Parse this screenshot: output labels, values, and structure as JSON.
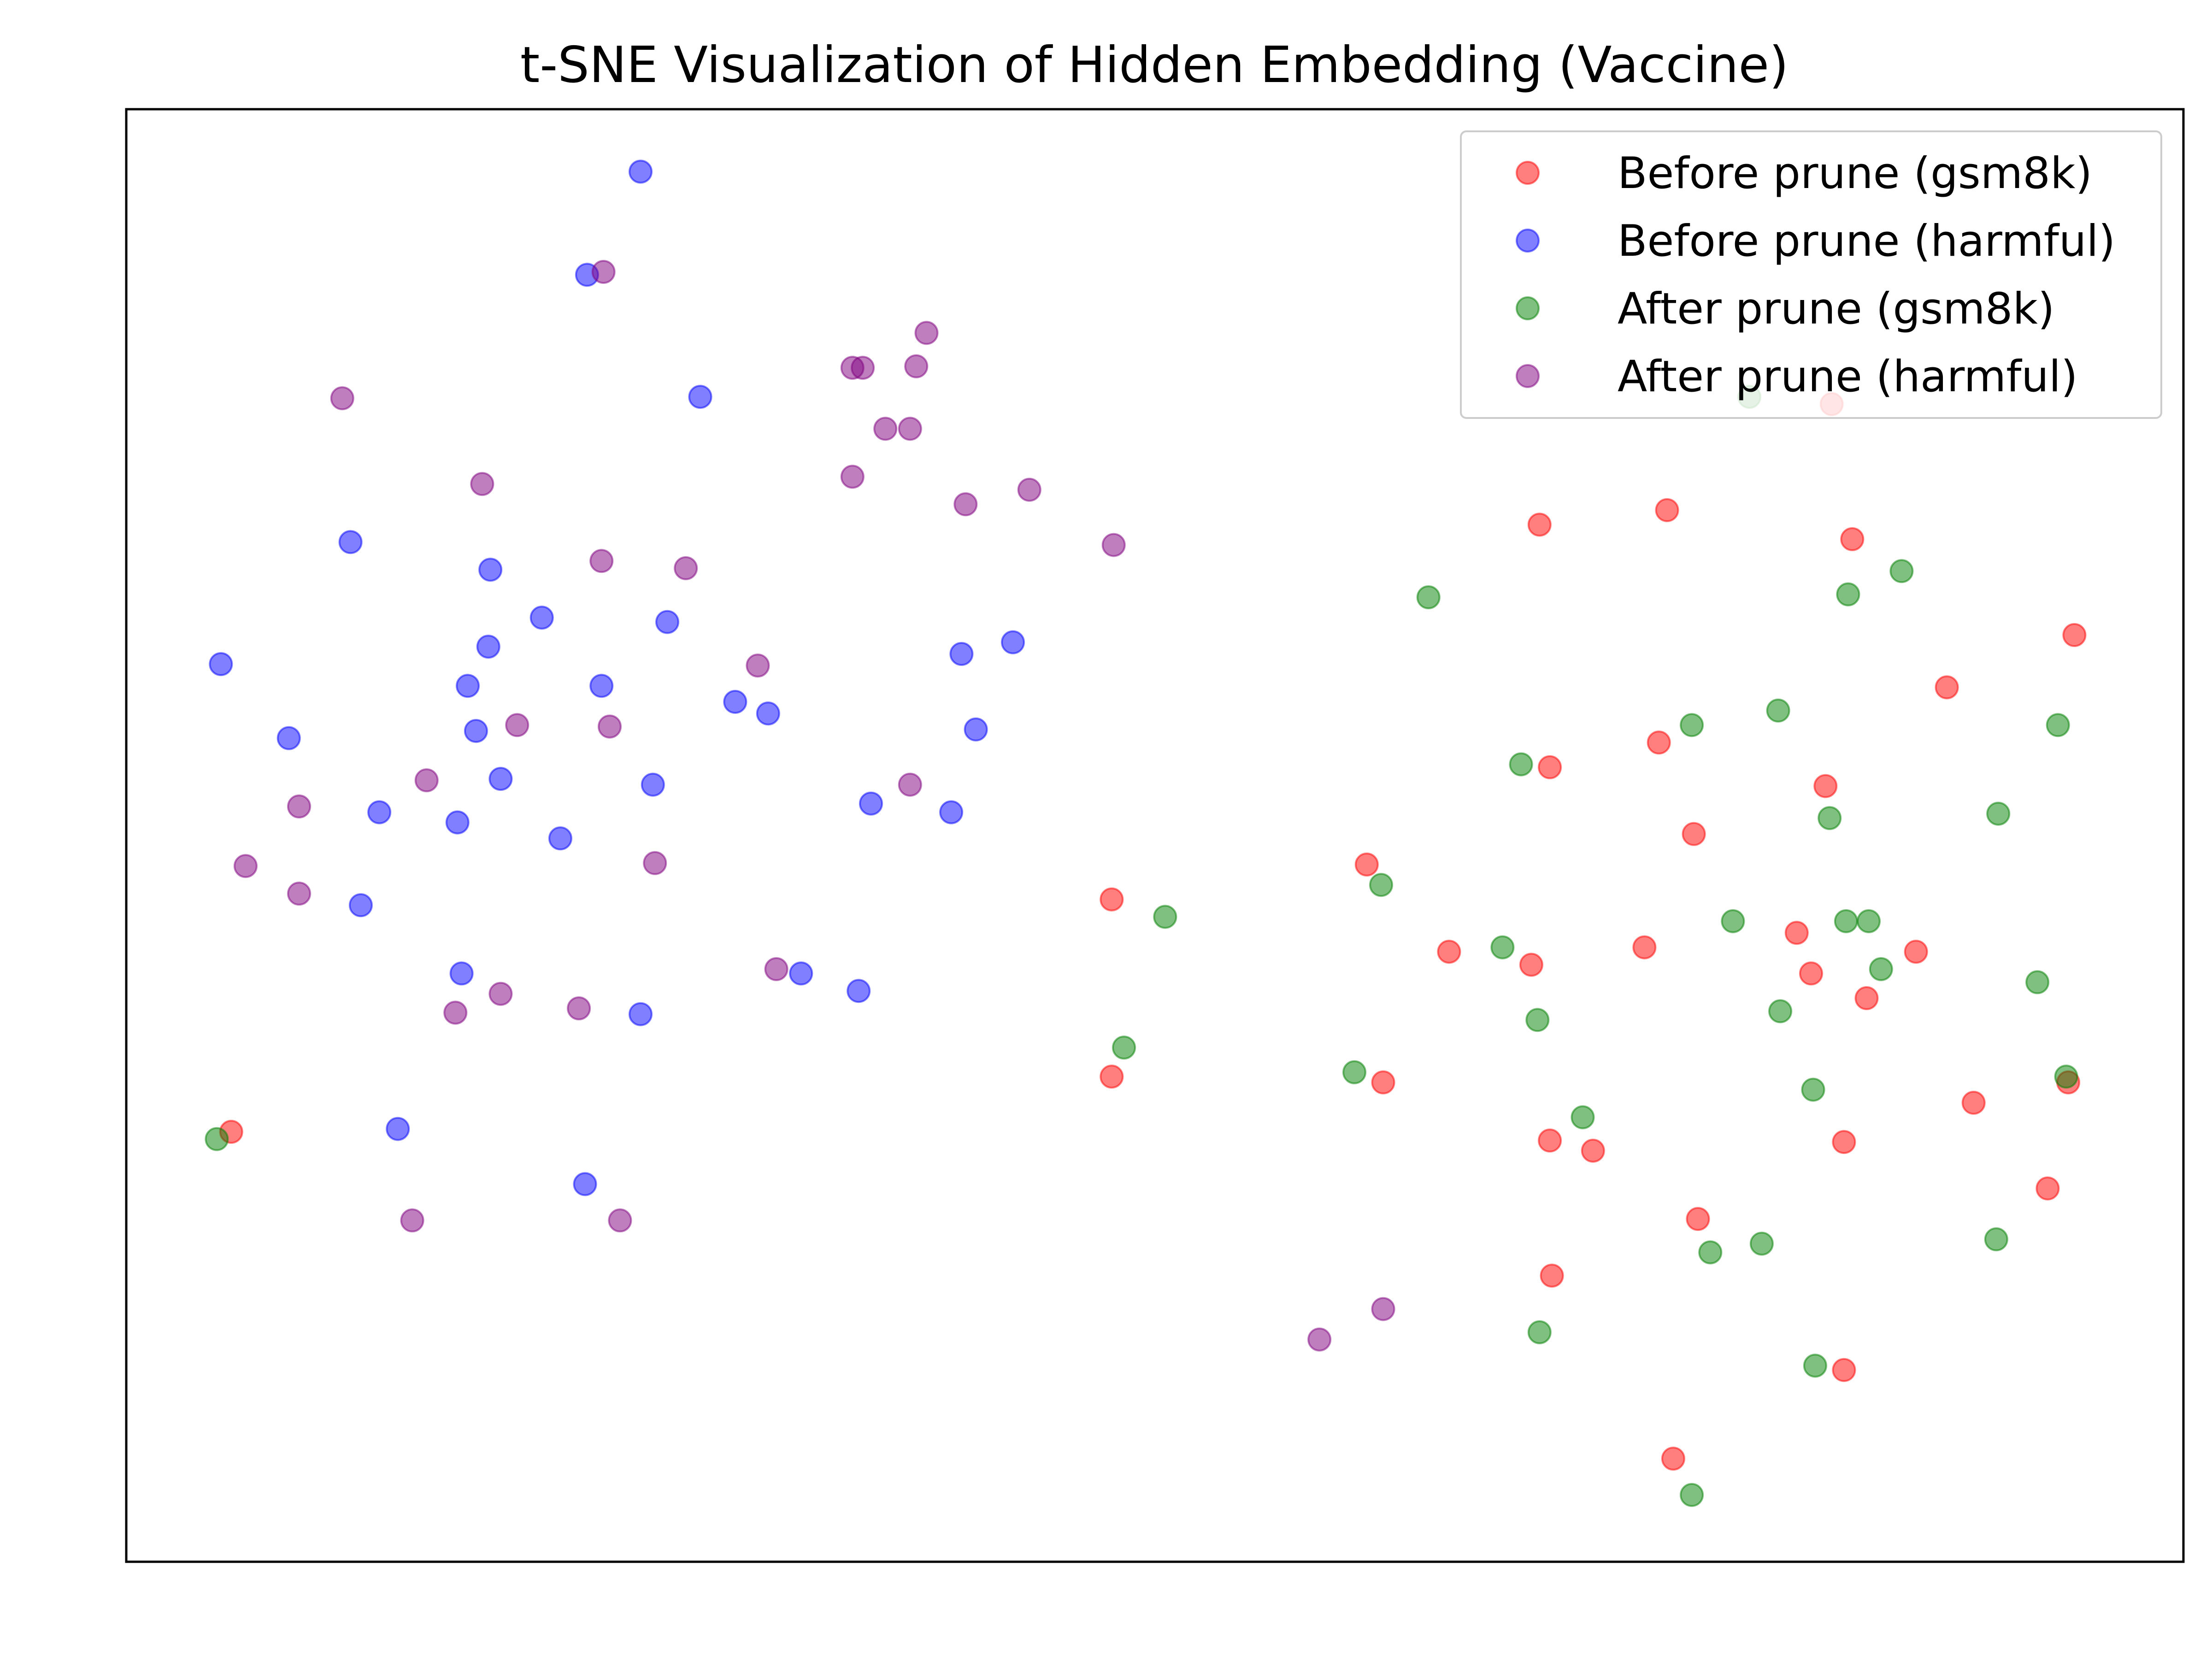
{
  "chart_data": {
    "type": "scatter",
    "title": "t-SNE Visualization of Hidden Embedding (Vaccine)",
    "xlabel": "",
    "ylabel": "",
    "xlim": [
      0,
      100
    ],
    "ylim": [
      0,
      100
    ],
    "ticks": "none",
    "grid": false,
    "legend": "upper-right",
    "series": [
      {
        "name": "Before prune (gsm8k)",
        "color": "#ff0000",
        "points": [
          [
            5.1,
            29.6
          ],
          [
            47.9,
            45.6
          ],
          [
            47.9,
            33.4
          ],
          [
            60.3,
            48.0
          ],
          [
            61.1,
            33.0
          ],
          [
            64.3,
            42.0
          ],
          [
            69.2,
            54.7
          ],
          [
            69.2,
            29.0
          ],
          [
            68.3,
            41.1
          ],
          [
            69.3,
            19.7
          ],
          [
            74.5,
            56.4
          ],
          [
            74.9,
            72.4
          ],
          [
            73.8,
            42.3
          ],
          [
            71.3,
            28.3
          ],
          [
            76.2,
            50.1
          ],
          [
            76.4,
            23.6
          ],
          [
            75.2,
            7.1
          ],
          [
            81.2,
            43.3
          ],
          [
            81.9,
            40.5
          ],
          [
            82.6,
            53.4
          ],
          [
            83.5,
            28.9
          ],
          [
            83.9,
            70.4
          ],
          [
            83.5,
            13.2
          ],
          [
            84.6,
            38.8
          ],
          [
            88.5,
            60.2
          ],
          [
            87.0,
            42.0
          ],
          [
            89.8,
            31.6
          ],
          [
            93.4,
            25.7
          ],
          [
            94.7,
            63.8
          ],
          [
            94.4,
            33.0
          ],
          [
            82.9,
            79.7
          ],
          [
            68.7,
            71.4
          ]
        ]
      },
      {
        "name": "Before prune (harmful)",
        "color": "#0000ff",
        "points": [
          [
            25.0,
            95.7
          ],
          [
            22.4,
            88.6
          ],
          [
            27.9,
            80.2
          ],
          [
            10.9,
            70.2
          ],
          [
            17.6,
            63.0
          ],
          [
            17.0,
            57.2
          ],
          [
            4.6,
            61.8
          ],
          [
            7.9,
            56.7
          ],
          [
            12.3,
            51.6
          ],
          [
            16.3,
            40.5
          ],
          [
            11.4,
            45.2
          ],
          [
            13.2,
            29.8
          ],
          [
            16.1,
            50.9
          ],
          [
            22.3,
            26.0
          ],
          [
            25.6,
            53.5
          ],
          [
            25.0,
            37.7
          ],
          [
            23.1,
            60.3
          ],
          [
            17.7,
            68.3
          ],
          [
            29.6,
            59.2
          ],
          [
            36.2,
            52.2
          ],
          [
            40.1,
            51.6
          ],
          [
            43.1,
            63.3
          ],
          [
            32.8,
            40.5
          ],
          [
            26.3,
            64.7
          ],
          [
            18.2,
            53.9
          ],
          [
            20.2,
            65.0
          ],
          [
            21.1,
            49.8
          ],
          [
            16.6,
            60.3
          ],
          [
            35.6,
            39.3
          ],
          [
            41.3,
            57.3
          ],
          [
            40.6,
            62.5
          ],
          [
            31.2,
            58.4
          ]
        ]
      },
      {
        "name": "After prune (gsm8k)",
        "color": "#008000",
        "points": [
          [
            4.4,
            29.1
          ],
          [
            50.5,
            44.4
          ],
          [
            48.5,
            35.4
          ],
          [
            63.3,
            66.4
          ],
          [
            61.0,
            46.6
          ],
          [
            59.7,
            33.7
          ],
          [
            67.8,
            54.9
          ],
          [
            66.9,
            42.3
          ],
          [
            68.6,
            37.3
          ],
          [
            70.8,
            30.6
          ],
          [
            68.7,
            15.8
          ],
          [
            78.9,
            80.2
          ],
          [
            76.1,
            57.6
          ],
          [
            78.1,
            44.1
          ],
          [
            77.0,
            21.3
          ],
          [
            76.1,
            4.6
          ],
          [
            80.4,
            37.9
          ],
          [
            82.0,
            32.5
          ],
          [
            82.8,
            51.2
          ],
          [
            83.7,
            66.6
          ],
          [
            83.6,
            44.1
          ],
          [
            84.7,
            44.1
          ],
          [
            85.3,
            40.8
          ],
          [
            86.3,
            68.2
          ],
          [
            90.9,
            22.2
          ],
          [
            91.0,
            51.5
          ],
          [
            92.9,
            39.9
          ],
          [
            93.9,
            57.6
          ],
          [
            94.3,
            33.4
          ],
          [
            82.1,
            13.5
          ],
          [
            79.5,
            21.9
          ],
          [
            80.3,
            58.6
          ]
        ]
      },
      {
        "name": "After prune (harmful)",
        "color": "#800080",
        "points": [
          [
            23.2,
            88.8
          ],
          [
            10.5,
            80.1
          ],
          [
            17.3,
            74.2
          ],
          [
            23.1,
            68.9
          ],
          [
            27.2,
            68.4
          ],
          [
            30.7,
            61.7
          ],
          [
            19.0,
            57.6
          ],
          [
            14.6,
            53.8
          ],
          [
            23.5,
            57.5
          ],
          [
            8.4,
            52.0
          ],
          [
            5.8,
            47.9
          ],
          [
            25.7,
            48.1
          ],
          [
            18.2,
            39.1
          ],
          [
            22.0,
            38.1
          ],
          [
            16.0,
            37.8
          ],
          [
            31.6,
            40.8
          ],
          [
            38.1,
            53.5
          ],
          [
            35.3,
            82.2
          ],
          [
            36.9,
            78.0
          ],
          [
            38.4,
            82.3
          ],
          [
            35.8,
            82.2
          ],
          [
            38.1,
            78.0
          ],
          [
            38.9,
            84.6
          ],
          [
            35.3,
            74.7
          ],
          [
            40.8,
            72.8
          ],
          [
            43.9,
            73.8
          ],
          [
            8.4,
            46.0
          ],
          [
            13.9,
            23.5
          ],
          [
            24.0,
            23.5
          ],
          [
            58.0,
            15.3
          ],
          [
            61.1,
            17.4
          ],
          [
            48.0,
            70.0
          ]
        ]
      }
    ]
  }
}
